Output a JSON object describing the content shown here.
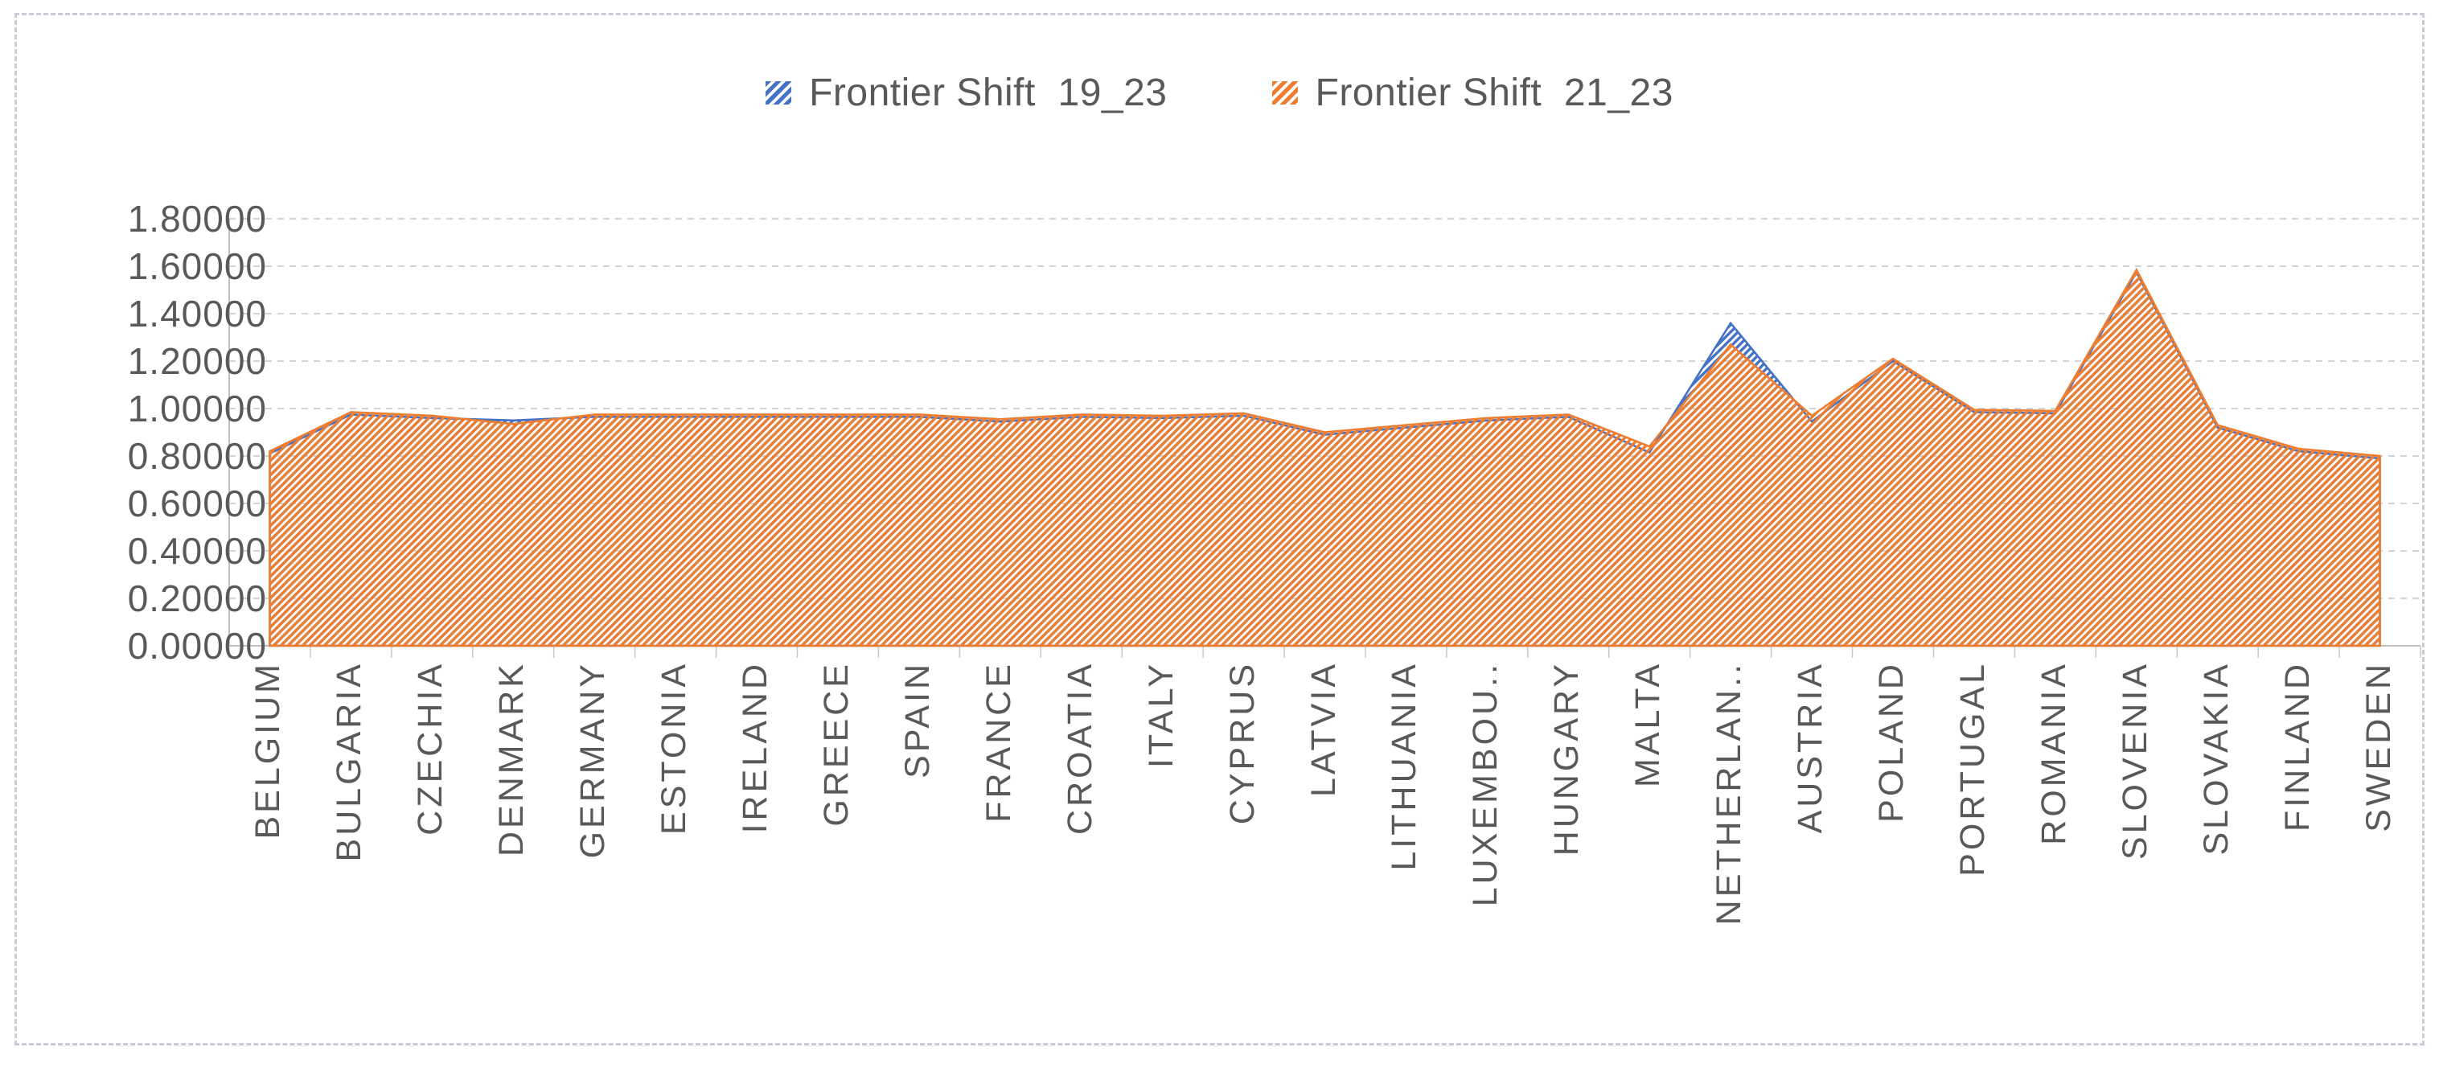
{
  "page": {
    "background": "#ffffff",
    "frame_border_color": "#c7ccd8"
  },
  "legend": {
    "items": [
      {
        "label": "Frontier Shift  19_23",
        "color": "#4472C4"
      },
      {
        "label": "Frontier Shift  21_23",
        "color": "#ED7D31"
      }
    ]
  },
  "chart_data": {
    "type": "area",
    "title": "",
    "xlabel": "",
    "ylabel": "",
    "ylim": [
      0,
      1.8
    ],
    "ytick_step": 0.2,
    "ytick_labels": [
      "0.00000",
      "0.20000",
      "0.40000",
      "0.60000",
      "0.80000",
      "1.00000",
      "1.20000",
      "1.40000",
      "1.60000",
      "1.80000"
    ],
    "grid": "horizontal-dashed",
    "legend_position": "top-center",
    "fill_style": "diagonal-hatch",
    "axis_text_color": "#595959",
    "gridline_color": "#d4d4d4",
    "axis_line_color": "#bfbfbf",
    "tick_color": "#c9c9c9",
    "categories": [
      "BELGIUM",
      "BULGARIA",
      "CZECHIA",
      "DENMARK",
      "GERMANY",
      "ESTONIA",
      "IRELAND",
      "GREECE",
      "SPAIN",
      "FRANCE",
      "CROATIA",
      "ITALY",
      "CYPRUS",
      "LATVIA",
      "LITHUANIA",
      "LUXEMBOU..",
      "HUNGARY",
      "MALTA",
      "NETHERLAN..",
      "AUSTRIA",
      "POLAND",
      "PORTUGAL",
      "ROMANIA",
      "SLOVENIA",
      "SLOVAKIA",
      "FINLAND",
      "SWEDEN"
    ],
    "series": [
      {
        "name": "Frontier Shift  19_23",
        "color": "#4472C4",
        "values": [
          0.81,
          0.975,
          0.96,
          0.95,
          0.965,
          0.965,
          0.965,
          0.965,
          0.965,
          0.945,
          0.965,
          0.96,
          0.97,
          0.89,
          0.92,
          0.95,
          0.965,
          0.815,
          1.36,
          0.945,
          1.2,
          0.985,
          0.98,
          1.575,
          0.92,
          0.82,
          0.79
        ]
      },
      {
        "name": "Frontier Shift  21_23",
        "color": "#ED7D31",
        "values": [
          0.82,
          0.985,
          0.97,
          0.935,
          0.975,
          0.975,
          0.975,
          0.975,
          0.975,
          0.955,
          0.975,
          0.97,
          0.98,
          0.9,
          0.93,
          0.96,
          0.975,
          0.84,
          1.27,
          0.97,
          1.21,
          0.995,
          0.99,
          1.585,
          0.93,
          0.83,
          0.8
        ]
      }
    ]
  }
}
